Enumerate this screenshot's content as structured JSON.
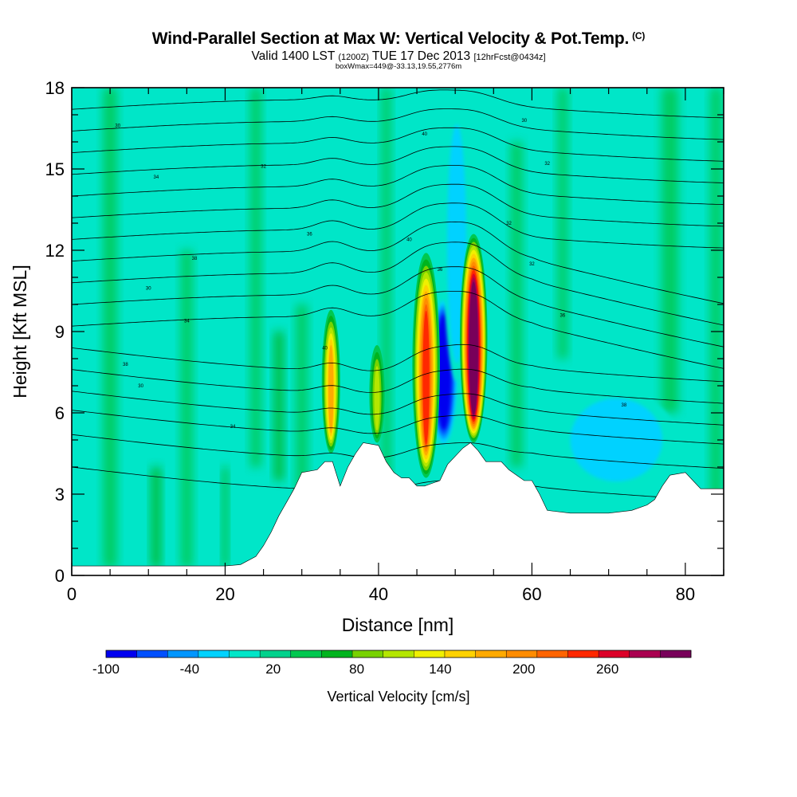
{
  "title": {
    "main": "Wind-Parallel Section at Max W: Vertical Velocity & Pot.Temp.",
    "copyright": "(C)",
    "valid_prefix": "Valid 1400 LST",
    "utc": "(1200Z)",
    "date": "TUE 17 Dec 2013",
    "forecast": "[12hrFcst@0434z]",
    "box_info": "boxWmax=449@-33.13,19.55,2776m"
  },
  "colors": {
    "background_field": "#00e6c8",
    "terrain": "#ffffff",
    "contour": "#000000",
    "scale": [
      "#0000f0",
      "#0050ff",
      "#0096ff",
      "#00d2ff",
      "#00e6c8",
      "#00d28c",
      "#00c850",
      "#00b41e",
      "#78d200",
      "#b4e600",
      "#f0f000",
      "#ffd200",
      "#ffaa00",
      "#ff8c00",
      "#ff6400",
      "#ff2800",
      "#dc0028",
      "#aa0050",
      "#78005a"
    ]
  },
  "chart_data": {
    "type": "heatmap",
    "xlabel": "Distance [nm]",
    "ylabel": "Height [Kft MSL]",
    "xlim": [
      0,
      85
    ],
    "ylim": [
      0,
      18
    ],
    "xticks": [
      0,
      20,
      40,
      60,
      80
    ],
    "yticks": [
      0,
      3,
      6,
      9,
      12,
      15,
      18
    ],
    "colorbar": {
      "label": "Vertical Velocity [cm/s]",
      "tick_labels": [
        "-100",
        "-40",
        "20",
        "80",
        "140",
        "200",
        "260"
      ],
      "tick_values": [
        -100,
        -40,
        20,
        80,
        140,
        200,
        260
      ],
      "range": [
        -100,
        320
      ],
      "step": 20
    },
    "terrain_height_kft": [
      [
        0,
        0.35
      ],
      [
        10,
        0.35
      ],
      [
        20,
        0.35
      ],
      [
        22,
        0.4
      ],
      [
        24,
        0.7
      ],
      [
        25,
        1.1
      ],
      [
        26,
        1.6
      ],
      [
        27,
        2.2
      ],
      [
        28,
        2.7
      ],
      [
        29,
        3.2
      ],
      [
        30,
        3.8
      ],
      [
        32,
        3.9
      ],
      [
        33,
        4.2
      ],
      [
        34,
        4.2
      ],
      [
        35,
        3.3
      ],
      [
        36,
        4.0
      ],
      [
        37,
        4.5
      ],
      [
        38,
        4.9
      ],
      [
        40,
        4.8
      ],
      [
        41,
        4.2
      ],
      [
        42,
        3.8
      ],
      [
        43,
        3.6
      ],
      [
        44,
        3.6
      ],
      [
        45,
        3.3
      ],
      [
        46,
        3.3
      ],
      [
        47,
        3.4
      ],
      [
        48,
        3.5
      ],
      [
        49,
        4.1
      ],
      [
        50,
        4.4
      ],
      [
        51,
        4.7
      ],
      [
        52,
        4.9
      ],
      [
        53,
        4.6
      ],
      [
        54,
        4.2
      ],
      [
        56,
        4.2
      ],
      [
        57,
        3.9
      ],
      [
        58,
        3.7
      ],
      [
        59,
        3.5
      ],
      [
        60,
        3.5
      ],
      [
        61,
        3.0
      ],
      [
        62,
        2.4
      ],
      [
        65,
        2.3
      ],
      [
        70,
        2.3
      ],
      [
        73,
        2.4
      ],
      [
        75,
        2.6
      ],
      [
        76,
        2.8
      ],
      [
        77,
        3.3
      ],
      [
        78,
        3.7
      ],
      [
        80,
        3.8
      ],
      [
        81,
        3.5
      ],
      [
        82,
        3.2
      ],
      [
        85,
        3.2
      ]
    ],
    "updraft_cores": [
      {
        "x": 33.8,
        "base_kft": 4.5,
        "top_kft": 9.8,
        "max": 140
      },
      {
        "x": 39.8,
        "base_kft": 4.9,
        "top_kft": 8.5,
        "max": 80
      },
      {
        "x": 46.2,
        "base_kft": 3.6,
        "top_kft": 11.9,
        "max": 200
      },
      {
        "x": 52.4,
        "base_kft": 4.9,
        "top_kft": 12.6,
        "max": 300
      }
    ],
    "downdraft_cores": [
      {
        "x": 48.5,
        "base_kft": 4.5,
        "top_kft": 10.5,
        "min": -100
      },
      {
        "x": 50.2,
        "base_kft": 6.5,
        "top_kft": 18,
        "min": -40
      },
      {
        "x": 71.0,
        "base_kft": 3.0,
        "top_kft": 7.0,
        "min": -40
      }
    ],
    "theta_contour_labels": [
      "30",
      "32",
      "34",
      "36",
      "38",
      "40"
    ]
  }
}
